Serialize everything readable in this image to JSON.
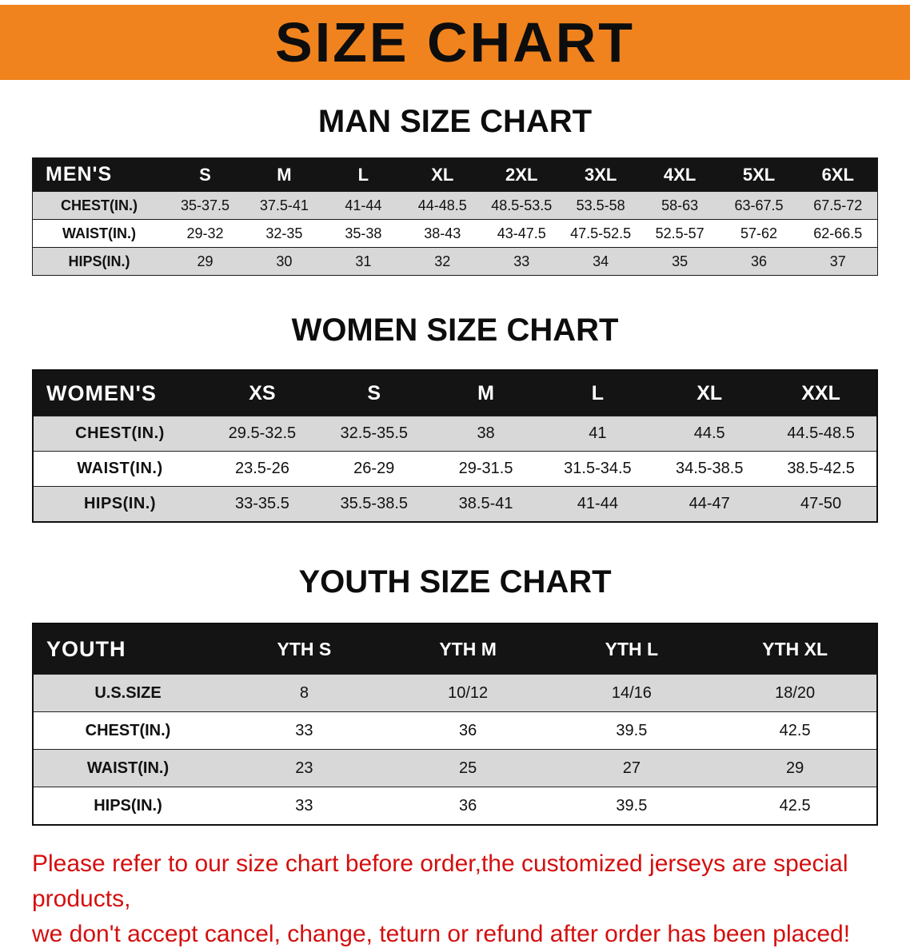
{
  "colors": {
    "banner": "#F0831E",
    "header_bg": "#141414",
    "row_shade": "#D8D8D8",
    "note_red": "#D40F0F"
  },
  "banner": {
    "title": "SIZE CHART"
  },
  "men": {
    "heading": "MAN SIZE CHART",
    "table": {
      "header": [
        "MEN'S",
        "S",
        "M",
        "L",
        "XL",
        "2XL",
        "3XL",
        "4XL",
        "5XL",
        "6XL"
      ],
      "rows": [
        [
          "CHEST(IN.)",
          "35-37.5",
          "37.5-41",
          "41-44",
          "44-48.5",
          "48.5-53.5",
          "53.5-58",
          "58-63",
          "63-67.5",
          "67.5-72"
        ],
        [
          "WAIST(IN.)",
          "29-32",
          "32-35",
          "35-38",
          "38-43",
          "43-47.5",
          "47.5-52.5",
          "52.5-57",
          "57-62",
          "62-66.5"
        ],
        [
          "HIPS(IN.)",
          "29",
          "30",
          "31",
          "32",
          "33",
          "34",
          "35",
          "36",
          "37"
        ]
      ]
    }
  },
  "women": {
    "heading": "WOMEN SIZE CHART",
    "table": {
      "header": [
        "WOMEN'S",
        "XS",
        "S",
        "M",
        "L",
        "XL",
        "XXL"
      ],
      "rows": [
        [
          "CHEST(IN.)",
          "29.5-32.5",
          "32.5-35.5",
          "38",
          "41",
          "44.5",
          "44.5-48.5"
        ],
        [
          "WAIST(IN.)",
          "23.5-26",
          "26-29",
          "29-31.5",
          "31.5-34.5",
          "34.5-38.5",
          "38.5-42.5"
        ],
        [
          "HIPS(IN.)",
          "33-35.5",
          "35.5-38.5",
          "38.5-41",
          "41-44",
          "44-47",
          "47-50"
        ]
      ]
    }
  },
  "youth": {
    "heading": "YOUTH SIZE CHART",
    "table": {
      "header": [
        "YOUTH",
        "YTH S",
        "YTH M",
        "YTH L",
        "YTH XL"
      ],
      "rows": [
        [
          "U.S.SIZE",
          "8",
          "10/12",
          "14/16",
          "18/20"
        ],
        [
          "CHEST(IN.)",
          "33",
          "36",
          "39.5",
          "42.5"
        ],
        [
          "WAIST(IN.)",
          "23",
          "25",
          "27",
          "29"
        ],
        [
          "HIPS(IN.)",
          "33",
          "36",
          "39.5",
          "42.5"
        ]
      ]
    }
  },
  "note": {
    "line1": "Please refer to our size chart before order,the customized jerseys are special products,",
    "line2": "we don't accept cancel, change, teturn or refund after order has been placed!"
  }
}
